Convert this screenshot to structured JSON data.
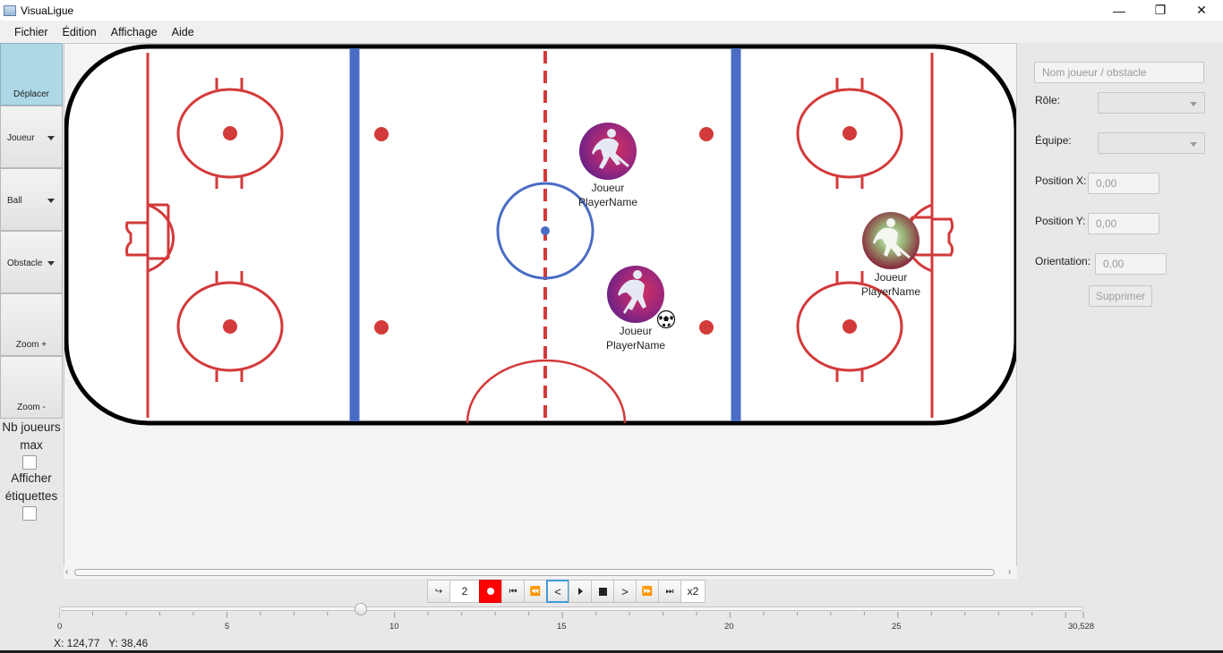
{
  "window": {
    "title": "VisuaLigue",
    "controls": {
      "minimize": "—",
      "maximize": "❐",
      "close": "✕"
    }
  },
  "menu": [
    "Fichier",
    "Édition",
    "Affichage",
    "Aide"
  ],
  "tools": {
    "move": "Déplacer",
    "player": "Joueur",
    "ball": "Ball",
    "obstacle": "Obstacle",
    "zoom_in": "Zoom +",
    "zoom_out": "Zoom -"
  },
  "options": {
    "max_players_line1": "Nb joueurs",
    "max_players_line2": "max",
    "max_players_checked": false,
    "show_labels_line1": "Afficher",
    "show_labels_line2": "étiquettes",
    "show_labels_checked": false
  },
  "rink": {
    "colors": {
      "red": "#d33a3a",
      "blue": "#4a6cc4",
      "board": "#000000",
      "ice": "#ffffff"
    }
  },
  "players": [
    {
      "role": "Joueur",
      "name": "PlayerName",
      "team_color": "purple",
      "has_ball": false
    },
    {
      "role": "Joueur",
      "name": "PlayerName",
      "team_color": "purple",
      "has_ball": true
    },
    {
      "role": "Joueur",
      "name": "PlayerName",
      "team_color": "green",
      "has_ball": false
    }
  ],
  "properties": {
    "name_placeholder": "Nom joueur / obstacle",
    "role_label": "Rôle:",
    "role_value": "",
    "team_label": "Équipe:",
    "team_value": "",
    "pos_x_label": "Position X:",
    "pos_x_value": "0,00",
    "pos_y_label": "Position Y:",
    "pos_y_value": "0,00",
    "orientation_label": "Orientation:",
    "orientation_value": "0,00",
    "delete_button": "Supprimer"
  },
  "transport": {
    "frame_value": "2",
    "speed": "x2",
    "icons": [
      "undo-arrow-icon",
      "record-icon",
      "skip-start-icon",
      "rewind-icon",
      "step-back-icon",
      "play-icon",
      "stop-icon",
      "step-forward-icon",
      "fast-forward-icon",
      "skip-end-icon"
    ]
  },
  "timeline": {
    "ticks": [
      "0",
      "5",
      "10",
      "15",
      "20",
      "25",
      "30,528"
    ],
    "min": 0,
    "max": 30.528,
    "value": 9.0
  },
  "status": {
    "x_label": "X: 124,77",
    "y_label": "Y: 38,46"
  }
}
